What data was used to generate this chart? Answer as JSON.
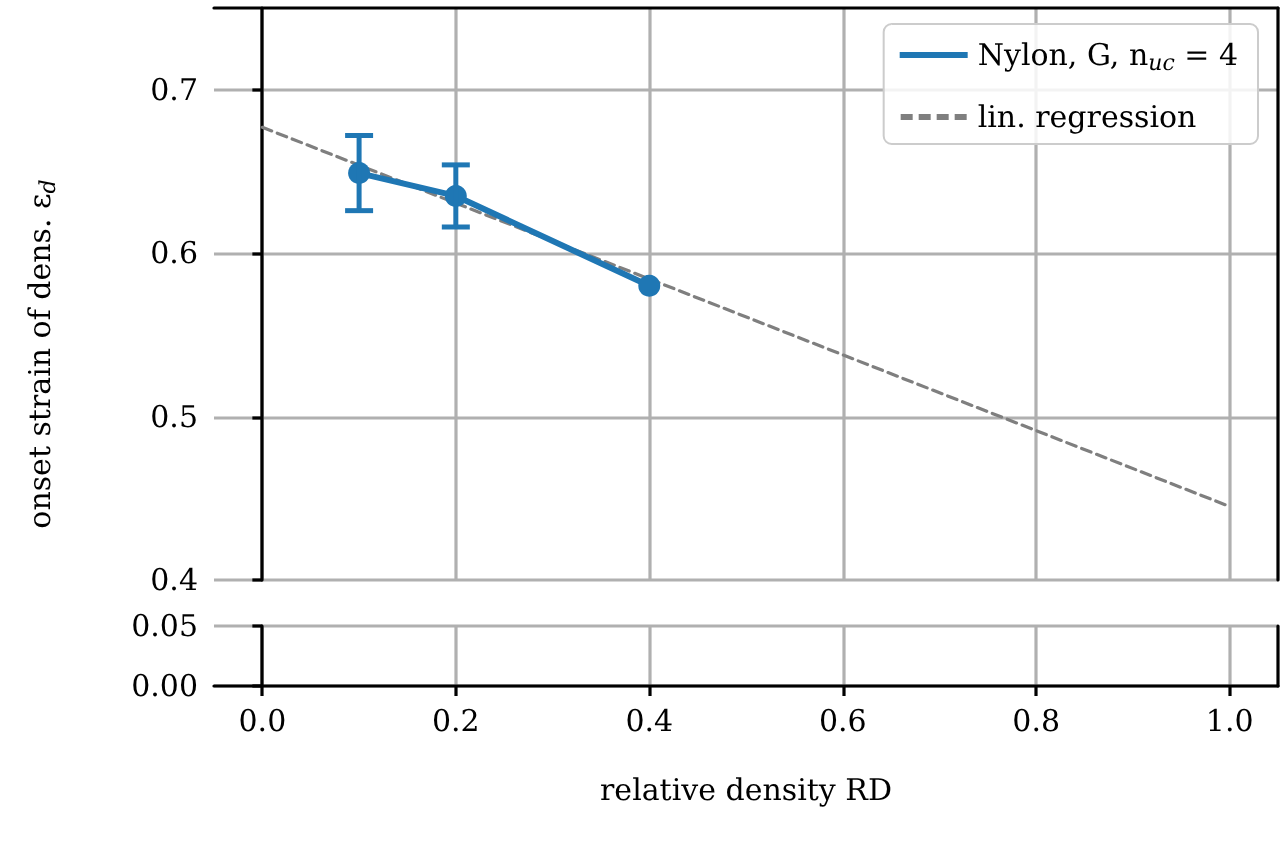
{
  "chart_data": [
    {
      "type": "line",
      "ylabel": "onset strain of dens. ε$_{d}$",
      "xlim": [
        -0.05,
        1.05
      ],
      "xticks": [
        0,
        0.2,
        0.4,
        0.6,
        0.8,
        1
      ],
      "ylim": [
        0.4,
        0.75
      ],
      "yticks": [
        0.4,
        0.5,
        0.6,
        0.7
      ],
      "tick_labels": "y",
      "grid": true,
      "legend": "top right",
      "series": [
        {
          "name": "Nylon, G, n$_{uc}$ = 4",
          "color": "#1f77b4",
          "x": [
            0.1,
            0.2,
            0.4
          ],
          "values": [
            0.649,
            0.635,
            0.58
          ],
          "errors": [
            0.023,
            0.019,
            null
          ],
          "marker": "circle",
          "line_style": "solid"
        },
        {
          "name": "lin. regression",
          "color": "#7f7f7f",
          "x": [
            0,
            1
          ],
          "values": [
            0.677,
            0.445
          ],
          "marker": "none",
          "line_style": "dashed"
        }
      ]
    },
    {
      "type": "line",
      "xlabel": "relative density RD",
      "xlim": [
        -0.05,
        1.05
      ],
      "xticks": [
        {
          "value": 0,
          "label": "0.0"
        },
        {
          "value": 0.2,
          "label": "0.2"
        },
        {
          "value": 0.4,
          "label": "0.4"
        },
        {
          "value": 0.6,
          "label": "0.6"
        },
        {
          "value": 0.8,
          "label": "0.8"
        },
        {
          "value": 1,
          "label": "1.0"
        }
      ],
      "ylim": [
        0,
        0.05
      ],
      "yticks": [
        {
          "value": 0,
          "label": "0.00"
        },
        {
          "value": 0.05,
          "label": "0.05"
        }
      ],
      "grid": true
    }
  ]
}
